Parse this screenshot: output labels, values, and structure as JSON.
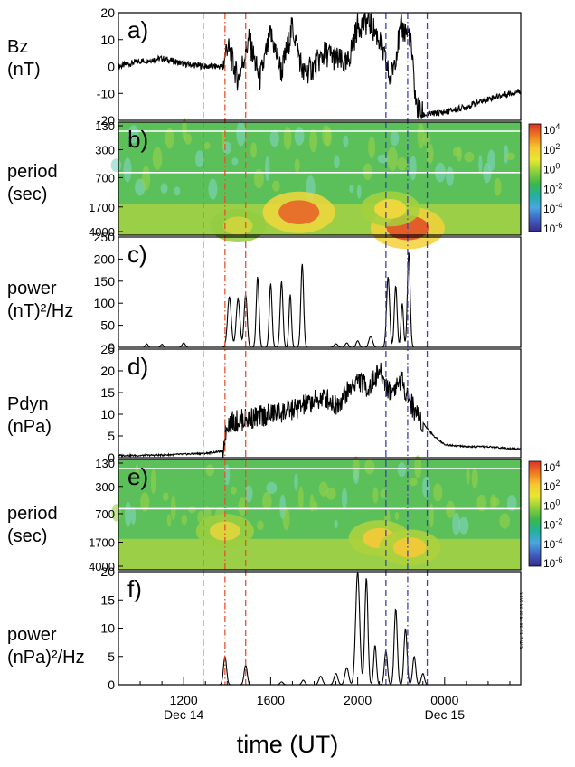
{
  "figure": {
    "xlabel": "time (UT)",
    "side_stamp": "SuTue Jul 26 15:09:23 2013"
  },
  "row_labels": {
    "bz": [
      "Bz",
      "(nT)"
    ],
    "period_b": [
      "period",
      "(sec)"
    ],
    "power_c": [
      "power",
      "(nT)²/Hz"
    ],
    "pdyn": [
      "Pdyn",
      "(nPa)"
    ],
    "period_e": [
      "period",
      "(sec)"
    ],
    "power_f": [
      "power",
      "(nPa)²/Hz"
    ]
  },
  "time_axis": {
    "range_hours": [
      9.0,
      27.5
    ],
    "ticks": [
      {
        "t": 12,
        "label": "1200",
        "sub": "Dec 14"
      },
      {
        "t": 16,
        "label": "1600",
        "sub": ""
      },
      {
        "t": 20,
        "label": "2000",
        "sub": ""
      },
      {
        "t": 24,
        "label": "0000",
        "sub": "Dec 15"
      }
    ]
  },
  "event_lines": [
    {
      "t": 12.9,
      "color": "#e8502a",
      "style": "dash"
    },
    {
      "t": 13.9,
      "color": "#e8502a",
      "style": "dashdot"
    },
    {
      "t": 14.85,
      "color": "#e8502a",
      "style": "dash"
    },
    {
      "t": 21.3,
      "color": "#4040b0",
      "style": "dash"
    },
    {
      "t": 22.3,
      "color": "#4040b0",
      "style": "dashdot"
    },
    {
      "t": 23.2,
      "color": "#4040b0",
      "style": "dash"
    }
  ],
  "colorbar": {
    "labels": [
      "10^4",
      "10^2",
      "10^0",
      "10^-2",
      "10^-4",
      "10^-6"
    ],
    "colors": [
      "#d8322a",
      "#f07a20",
      "#f5c830",
      "#e8e830",
      "#8ccf3c",
      "#3cb84a",
      "#22b0a0",
      "#4aa6e0",
      "#4060c0",
      "#3a2a8a"
    ]
  },
  "chart_data": [
    {
      "panel": "a)",
      "type": "line",
      "ylabel": "Bz (nT)",
      "yticks": [
        -20,
        -10,
        0,
        10,
        20
      ],
      "ylim": [
        -20,
        20
      ],
      "x": [
        9.0,
        10.0,
        11.0,
        12.0,
        13.0,
        13.8,
        14.0,
        14.5,
        15.0,
        15.5,
        16.0,
        16.5,
        17.0,
        17.5,
        18.0,
        18.5,
        19.0,
        19.5,
        20.0,
        20.5,
        21.0,
        21.5,
        22.0,
        22.4,
        22.7,
        23.0,
        24.0,
        25.0,
        26.0,
        27.5
      ],
      "y": [
        0,
        2,
        3,
        1,
        0,
        0,
        8,
        -5,
        10,
        -5,
        12,
        -2,
        15,
        -3,
        0,
        5,
        3,
        0,
        15,
        17,
        10,
        -5,
        14,
        12,
        -15,
        -18,
        -17,
        -15,
        -12,
        -9
      ]
    },
    {
      "panel": "b)",
      "type": "heatmap",
      "ylabel": "period (sec)",
      "yticks": [
        130,
        300,
        700,
        1700,
        4000
      ],
      "band_lines_sec": [
        130,
        600
      ],
      "hot_spots": [
        {
          "t": 14.5,
          "period": 3000,
          "level": 0.45
        },
        {
          "t": 17.3,
          "period": 2000,
          "level": 0.9
        },
        {
          "t": 22.3,
          "period": 3200,
          "level": 0.95
        },
        {
          "t": 21.5,
          "period": 1800,
          "level": 0.55
        }
      ]
    },
    {
      "panel": "c)",
      "type": "line",
      "ylabel": "power (nT)²/Hz",
      "yticks": [
        0,
        50,
        100,
        150,
        200,
        250
      ],
      "ylim": [
        0,
        250
      ],
      "peaks": [
        {
          "t": 10.3,
          "v": 8,
          "w": 0.08
        },
        {
          "t": 11.0,
          "v": 7,
          "w": 0.08
        },
        {
          "t": 12.0,
          "v": 10,
          "w": 0.1
        },
        {
          "t": 14.1,
          "v": 115,
          "w": 0.12
        },
        {
          "t": 14.5,
          "v": 110,
          "w": 0.12
        },
        {
          "t": 14.85,
          "v": 120,
          "w": 0.1
        },
        {
          "t": 15.4,
          "v": 160,
          "w": 0.09
        },
        {
          "t": 16.0,
          "v": 145,
          "w": 0.09
        },
        {
          "t": 16.5,
          "v": 150,
          "w": 0.09
        },
        {
          "t": 16.9,
          "v": 120,
          "w": 0.08
        },
        {
          "t": 17.45,
          "v": 190,
          "w": 0.09
        },
        {
          "t": 19.0,
          "v": 8,
          "w": 0.12
        },
        {
          "t": 19.5,
          "v": 10,
          "w": 0.1
        },
        {
          "t": 20.0,
          "v": 15,
          "w": 0.1
        },
        {
          "t": 20.6,
          "v": 25,
          "w": 0.12
        },
        {
          "t": 21.4,
          "v": 160,
          "w": 0.1
        },
        {
          "t": 21.75,
          "v": 140,
          "w": 0.09
        },
        {
          "t": 22.05,
          "v": 100,
          "w": 0.08
        },
        {
          "t": 22.35,
          "v": 215,
          "w": 0.09
        }
      ]
    },
    {
      "panel": "d)",
      "type": "line",
      "ylabel": "Pdyn (nPa)",
      "yticks": [
        0,
        5,
        10,
        15,
        20,
        25
      ],
      "ylim": [
        0,
        25
      ],
      "x": [
        9.0,
        10.0,
        11.0,
        12.0,
        13.0,
        13.8,
        14.0,
        15.0,
        16.0,
        17.0,
        18.0,
        18.5,
        19.0,
        19.5,
        20.0,
        20.5,
        21.0,
        21.5,
        22.0,
        22.5,
        23.0,
        23.5,
        24.0,
        25.0,
        26.0,
        27.5
      ],
      "y": [
        0.5,
        0.5,
        0.6,
        0.8,
        1.0,
        1.5,
        8,
        9,
        10,
        11,
        13,
        14,
        12,
        15,
        18,
        16,
        20,
        15,
        18,
        12,
        8,
        5,
        3,
        2.5,
        2.5,
        2
      ]
    },
    {
      "panel": "e)",
      "type": "heatmap",
      "ylabel": "period (sec)",
      "yticks": [
        130,
        300,
        700,
        1700,
        4000
      ],
      "band_lines_sec": [
        130,
        600
      ],
      "hot_spots": [
        {
          "t": 13.9,
          "period": 1200,
          "level": 0.5
        },
        {
          "t": 21.0,
          "period": 1500,
          "level": 0.6
        },
        {
          "t": 22.4,
          "period": 2000,
          "level": 0.6
        }
      ]
    },
    {
      "panel": "f)",
      "type": "line",
      "ylabel": "power (nPa)²/Hz",
      "yticks": [
        0,
        5,
        10,
        15,
        20
      ],
      "ylim": [
        0,
        20
      ],
      "peaks": [
        {
          "t": 13.9,
          "v": 5,
          "w": 0.1
        },
        {
          "t": 14.85,
          "v": 3.5,
          "w": 0.1
        },
        {
          "t": 16.5,
          "v": 0.5,
          "w": 0.1
        },
        {
          "t": 17.5,
          "v": 0.8,
          "w": 0.1
        },
        {
          "t": 18.3,
          "v": 1.5,
          "w": 0.12
        },
        {
          "t": 19.0,
          "v": 2,
          "w": 0.12
        },
        {
          "t": 19.5,
          "v": 3,
          "w": 0.12
        },
        {
          "t": 20.0,
          "v": 20,
          "w": 0.13
        },
        {
          "t": 20.4,
          "v": 19,
          "w": 0.1
        },
        {
          "t": 20.8,
          "v": 7,
          "w": 0.09
        },
        {
          "t": 21.3,
          "v": 6,
          "w": 0.1
        },
        {
          "t": 21.75,
          "v": 13.5,
          "w": 0.1
        },
        {
          "t": 22.2,
          "v": 10,
          "w": 0.1
        },
        {
          "t": 22.6,
          "v": 5,
          "w": 0.1
        },
        {
          "t": 23.0,
          "v": 2,
          "w": 0.1
        }
      ]
    }
  ]
}
